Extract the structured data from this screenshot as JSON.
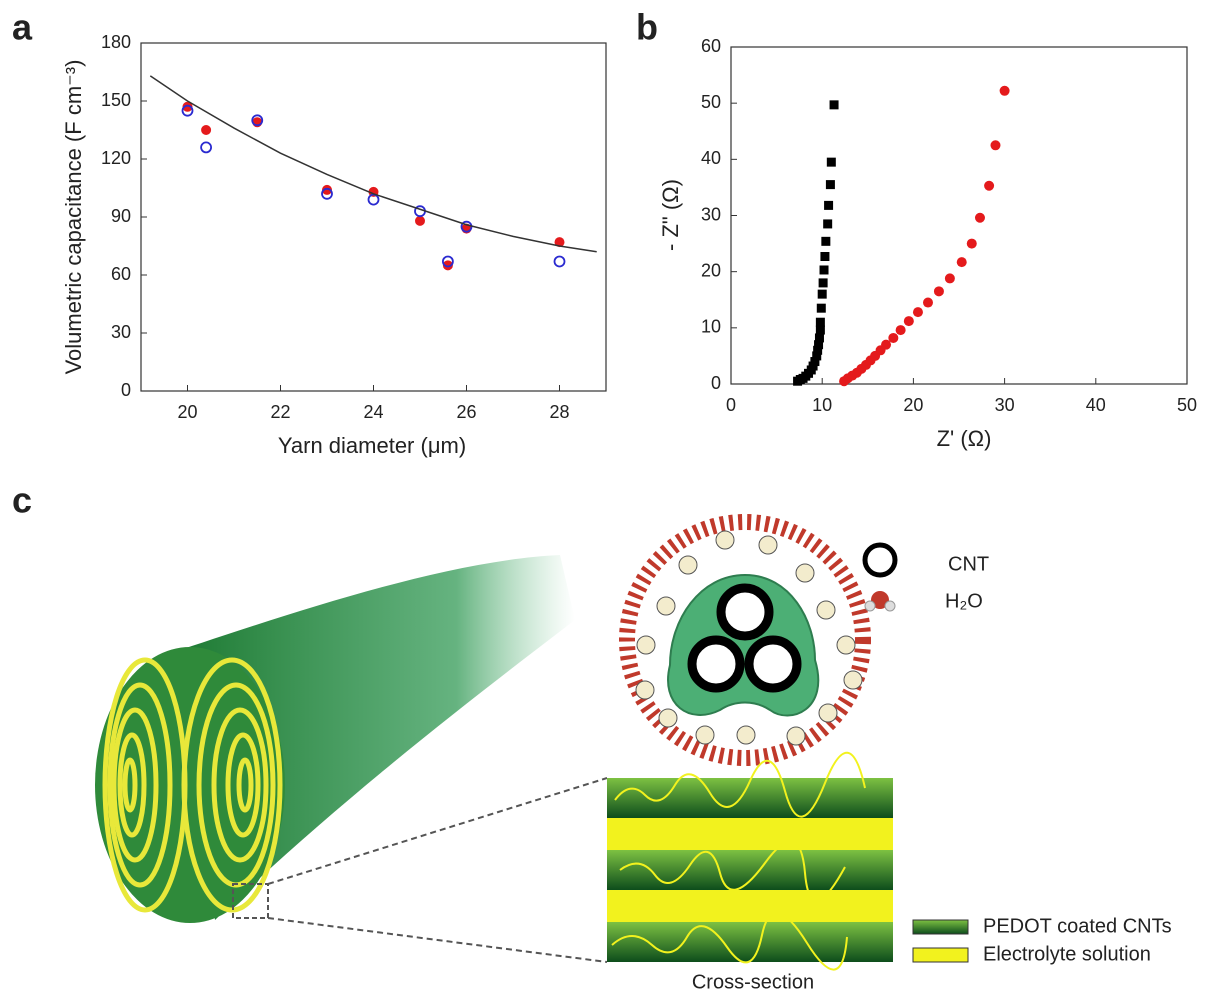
{
  "panel_labels": [
    "a",
    "b",
    "c"
  ],
  "chart_data": [
    {
      "type": "scatter",
      "x_label": "Yarn diameter (μm)",
      "y_label": "Volumetric capacitance (F cm⁻³)",
      "xlim": [
        19,
        29
      ],
      "xticks": [
        20,
        22,
        24,
        26,
        28
      ],
      "ylim": [
        0,
        180
      ],
      "yticks": [
        0,
        30,
        60,
        90,
        120,
        150,
        180
      ],
      "series": [
        {
          "color": "#e41a1c",
          "marker": "filled-circle",
          "x": [
            20,
            20.4,
            21.5,
            23,
            24,
            25,
            25.6,
            26,
            28
          ],
          "values": [
            147,
            135,
            139,
            104,
            103,
            88,
            65,
            84,
            77
          ]
        },
        {
          "color": "#2a2ad0",
          "marker": "open-circle",
          "x": [
            20,
            20.4,
            21.5,
            23,
            24,
            25,
            25.6,
            26,
            28
          ],
          "values": [
            145,
            126,
            140,
            102,
            99,
            93,
            67,
            85,
            67
          ]
        },
        {
          "color": "#333333",
          "marker": "line",
          "x": [
            19.2,
            20,
            21,
            22,
            23,
            24,
            25,
            26,
            27,
            28,
            28.8
          ],
          "values": [
            163,
            150,
            136,
            123,
            112,
            102,
            94,
            86,
            80,
            75,
            72
          ]
        }
      ]
    },
    {
      "type": "scatter",
      "x_label": "Z' (Ω)",
      "y_label": "- Z\" (Ω)",
      "xlim": [
        0,
        50
      ],
      "xticks": [
        0,
        10,
        20,
        30,
        40,
        50
      ],
      "ylim": [
        0,
        60
      ],
      "yticks": [
        0,
        10,
        20,
        30,
        40,
        50,
        60
      ],
      "series": [
        {
          "color": "#000000",
          "marker": "square",
          "x": [
            7.3,
            7.6,
            7.9,
            8.2,
            8.5,
            8.8,
            9.0,
            9.2,
            9.4,
            9.5,
            9.6,
            9.7,
            9.8,
            9.8,
            9.9,
            10.0,
            10.1,
            10.2,
            10.3,
            10.4,
            10.6,
            10.7,
            10.9,
            11.0,
            11.3
          ],
          "values": [
            0.5,
            0.8,
            1,
            1.4,
            1.9,
            2.5,
            3.2,
            4,
            5,
            6,
            7,
            8.2,
            9.6,
            11,
            13.5,
            16,
            18,
            20.3,
            22.7,
            25.4,
            28.5,
            31.8,
            35.5,
            39.5,
            49.7
          ]
        },
        {
          "color": "#e41a1c",
          "marker": "filled-circle",
          "x": [
            12.4,
            12.8,
            13.3,
            13.8,
            14.3,
            14.8,
            15.3,
            15.8,
            16.4,
            17.0,
            17.8,
            18.6,
            19.5,
            20.5,
            21.6,
            22.8,
            24,
            25.3,
            26.4,
            27.3,
            28.3,
            29,
            30
          ],
          "values": [
            0.5,
            1,
            1.5,
            2,
            2.7,
            3.4,
            4.2,
            5,
            6,
            7,
            8.2,
            9.6,
            11.2,
            12.8,
            14.5,
            16.5,
            18.8,
            21.7,
            25,
            29.6,
            35.3,
            42.5,
            52.2
          ]
        }
      ]
    }
  ],
  "illustration": {
    "cnt_label": "CNT",
    "water_label": "H₂O",
    "cross_section_label": "Cross-section",
    "legend": [
      "PEDOT coated CNTs",
      "Electrolyte solution"
    ]
  }
}
